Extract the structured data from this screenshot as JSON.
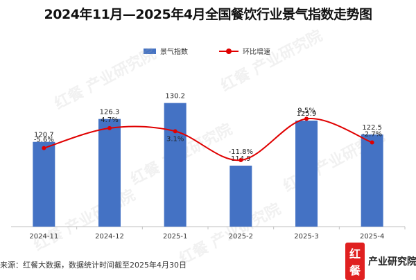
{
  "chart_data": {
    "type": "bar",
    "title": "2024年11月—2025年4月全国餐饮行业景气指数走势图",
    "categories": [
      "2024-11",
      "2024-12",
      "2025-1",
      "2025-2",
      "2025-3",
      "2025-4"
    ],
    "series": [
      {
        "name": "景气指数",
        "type": "bar",
        "axis": "left",
        "values": [
          120.7,
          126.3,
          130.2,
          114.9,
          125.9,
          122.5
        ],
        "labels": [
          "120.7",
          "126.3",
          "130.2",
          "114.9",
          "125.9",
          "122.5"
        ]
      },
      {
        "name": "环比增速",
        "type": "line",
        "axis": "right",
        "values": [
          -5.6,
          4.7,
          3.1,
          -11.8,
          9.5,
          -2.7
        ],
        "labels": [
          "-5.6%",
          "4.7%",
          "3.1%",
          "-11.8%",
          "9.5%",
          "-2.7%"
        ]
      }
    ],
    "ylim_left": [
      100,
      132
    ],
    "ylim_right": [
      -25,
      25
    ],
    "grid": false,
    "legend": "top-center"
  },
  "colors": {
    "bar": "#4472C4",
    "line": "#E00000",
    "brand": "#E02020"
  },
  "source": "来源：红餐大数据，数据统计时间截至2025年4月30日",
  "watermark": "红餐 产业研究院",
  "logo": {
    "mark": "红餐",
    "text": "产业研究院"
  }
}
